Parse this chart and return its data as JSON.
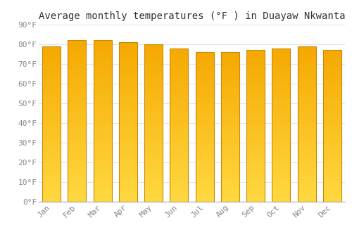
{
  "title": "Average monthly temperatures (°F ) in Duayaw Nkwanta",
  "months": [
    "Jan",
    "Feb",
    "Mar",
    "Apr",
    "May",
    "Jun",
    "Jul",
    "Aug",
    "Sep",
    "Oct",
    "Nov",
    "Dec"
  ],
  "values": [
    79,
    82,
    82,
    81,
    80,
    78,
    76,
    76,
    77,
    78,
    79,
    77
  ],
  "bar_color_top": "#F5A800",
  "bar_color_bottom": "#FFD840",
  "bar_edge_color": "#C8880A",
  "background_color": "#FFFFFF",
  "grid_color": "#DDDDDD",
  "ylim": [
    0,
    90
  ],
  "ytick_step": 10,
  "title_fontsize": 10,
  "tick_fontsize": 8,
  "tick_color": "#888888",
  "font_family": "monospace",
  "bar_width": 0.72
}
